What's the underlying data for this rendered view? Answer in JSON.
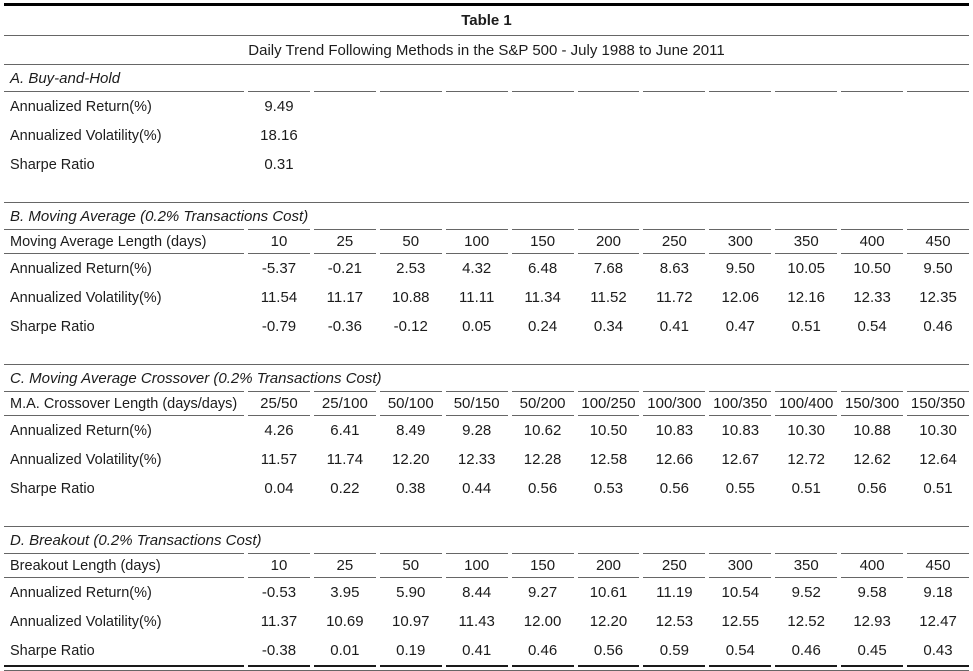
{
  "page": {
    "title": "Table 1",
    "subtitle": "Daily Trend Following Methods in the S&P 500 - July 1988 to June 2011"
  },
  "colors": {
    "text": "#1c1c1c",
    "border_thin": "#666666",
    "border_thick": "#000000"
  },
  "table": {
    "sections": [
      {
        "heading": "A. Buy-and-Hold",
        "header_label": null,
        "columns": null,
        "rows": [
          {
            "label": "Annualized Return(%)",
            "values": [
              "9.49"
            ]
          },
          {
            "label": "Annualized Volatility(%)",
            "values": [
              "18.16"
            ]
          },
          {
            "label": "Sharpe Ratio",
            "values": [
              "0.31"
            ]
          }
        ]
      },
      {
        "heading": "B. Moving Average (0.2% Transactions Cost)",
        "header_label": "Moving Average Length (days)",
        "columns": [
          "10",
          "25",
          "50",
          "100",
          "150",
          "200",
          "250",
          "300",
          "350",
          "400",
          "450"
        ],
        "rows": [
          {
            "label": "Annualized Return(%)",
            "values": [
              "-5.37",
              "-0.21",
              "2.53",
              "4.32",
              "6.48",
              "7.68",
              "8.63",
              "9.50",
              "10.05",
              "10.50",
              "9.50"
            ]
          },
          {
            "label": "Annualized Volatility(%)",
            "values": [
              "11.54",
              "11.17",
              "10.88",
              "11.11",
              "11.34",
              "11.52",
              "11.72",
              "12.06",
              "12.16",
              "12.33",
              "12.35"
            ]
          },
          {
            "label": "Sharpe Ratio",
            "values": [
              "-0.79",
              "-0.36",
              "-0.12",
              "0.05",
              "0.24",
              "0.34",
              "0.41",
              "0.47",
              "0.51",
              "0.54",
              "0.46"
            ]
          }
        ]
      },
      {
        "heading": "C. Moving Average Crossover (0.2% Transactions Cost)",
        "header_label": "M.A. Crossover Length (days/days)",
        "columns": [
          "25/50",
          "25/100",
          "50/100",
          "50/150",
          "50/200",
          "100/250",
          "100/300",
          "100/350",
          "100/400",
          "150/300",
          "150/350"
        ],
        "rows": [
          {
            "label": "Annualized Return(%)",
            "values": [
              "4.26",
              "6.41",
              "8.49",
              "9.28",
              "10.62",
              "10.50",
              "10.83",
              "10.83",
              "10.30",
              "10.88",
              "10.30"
            ]
          },
          {
            "label": "Annualized Volatility(%)",
            "values": [
              "11.57",
              "11.74",
              "12.20",
              "12.33",
              "12.28",
              "12.58",
              "12.66",
              "12.67",
              "12.72",
              "12.62",
              "12.64"
            ]
          },
          {
            "label": "Sharpe Ratio",
            "values": [
              "0.04",
              "0.22",
              "0.38",
              "0.44",
              "0.56",
              "0.53",
              "0.56",
              "0.55",
              "0.51",
              "0.56",
              "0.51"
            ]
          }
        ]
      },
      {
        "heading": "D. Breakout (0.2% Transactions Cost)",
        "header_label": "Breakout Length (days)",
        "columns": [
          "10",
          "25",
          "50",
          "100",
          "150",
          "200",
          "250",
          "300",
          "350",
          "400",
          "450"
        ],
        "rows": [
          {
            "label": "Annualized Return(%)",
            "values": [
              "-0.53",
              "3.95",
              "5.90",
              "8.44",
              "9.27",
              "10.61",
              "11.19",
              "10.54",
              "9.52",
              "9.58",
              "9.18"
            ]
          },
          {
            "label": "Annualized Volatility(%)",
            "values": [
              "11.37",
              "10.69",
              "10.97",
              "11.43",
              "12.00",
              "12.20",
              "12.53",
              "12.55",
              "12.52",
              "12.93",
              "12.47"
            ]
          },
          {
            "label": "Sharpe Ratio",
            "values": [
              "-0.38",
              "0.01",
              "0.19",
              "0.41",
              "0.46",
              "0.56",
              "0.59",
              "0.54",
              "0.46",
              "0.45",
              "0.43"
            ]
          }
        ]
      }
    ]
  }
}
